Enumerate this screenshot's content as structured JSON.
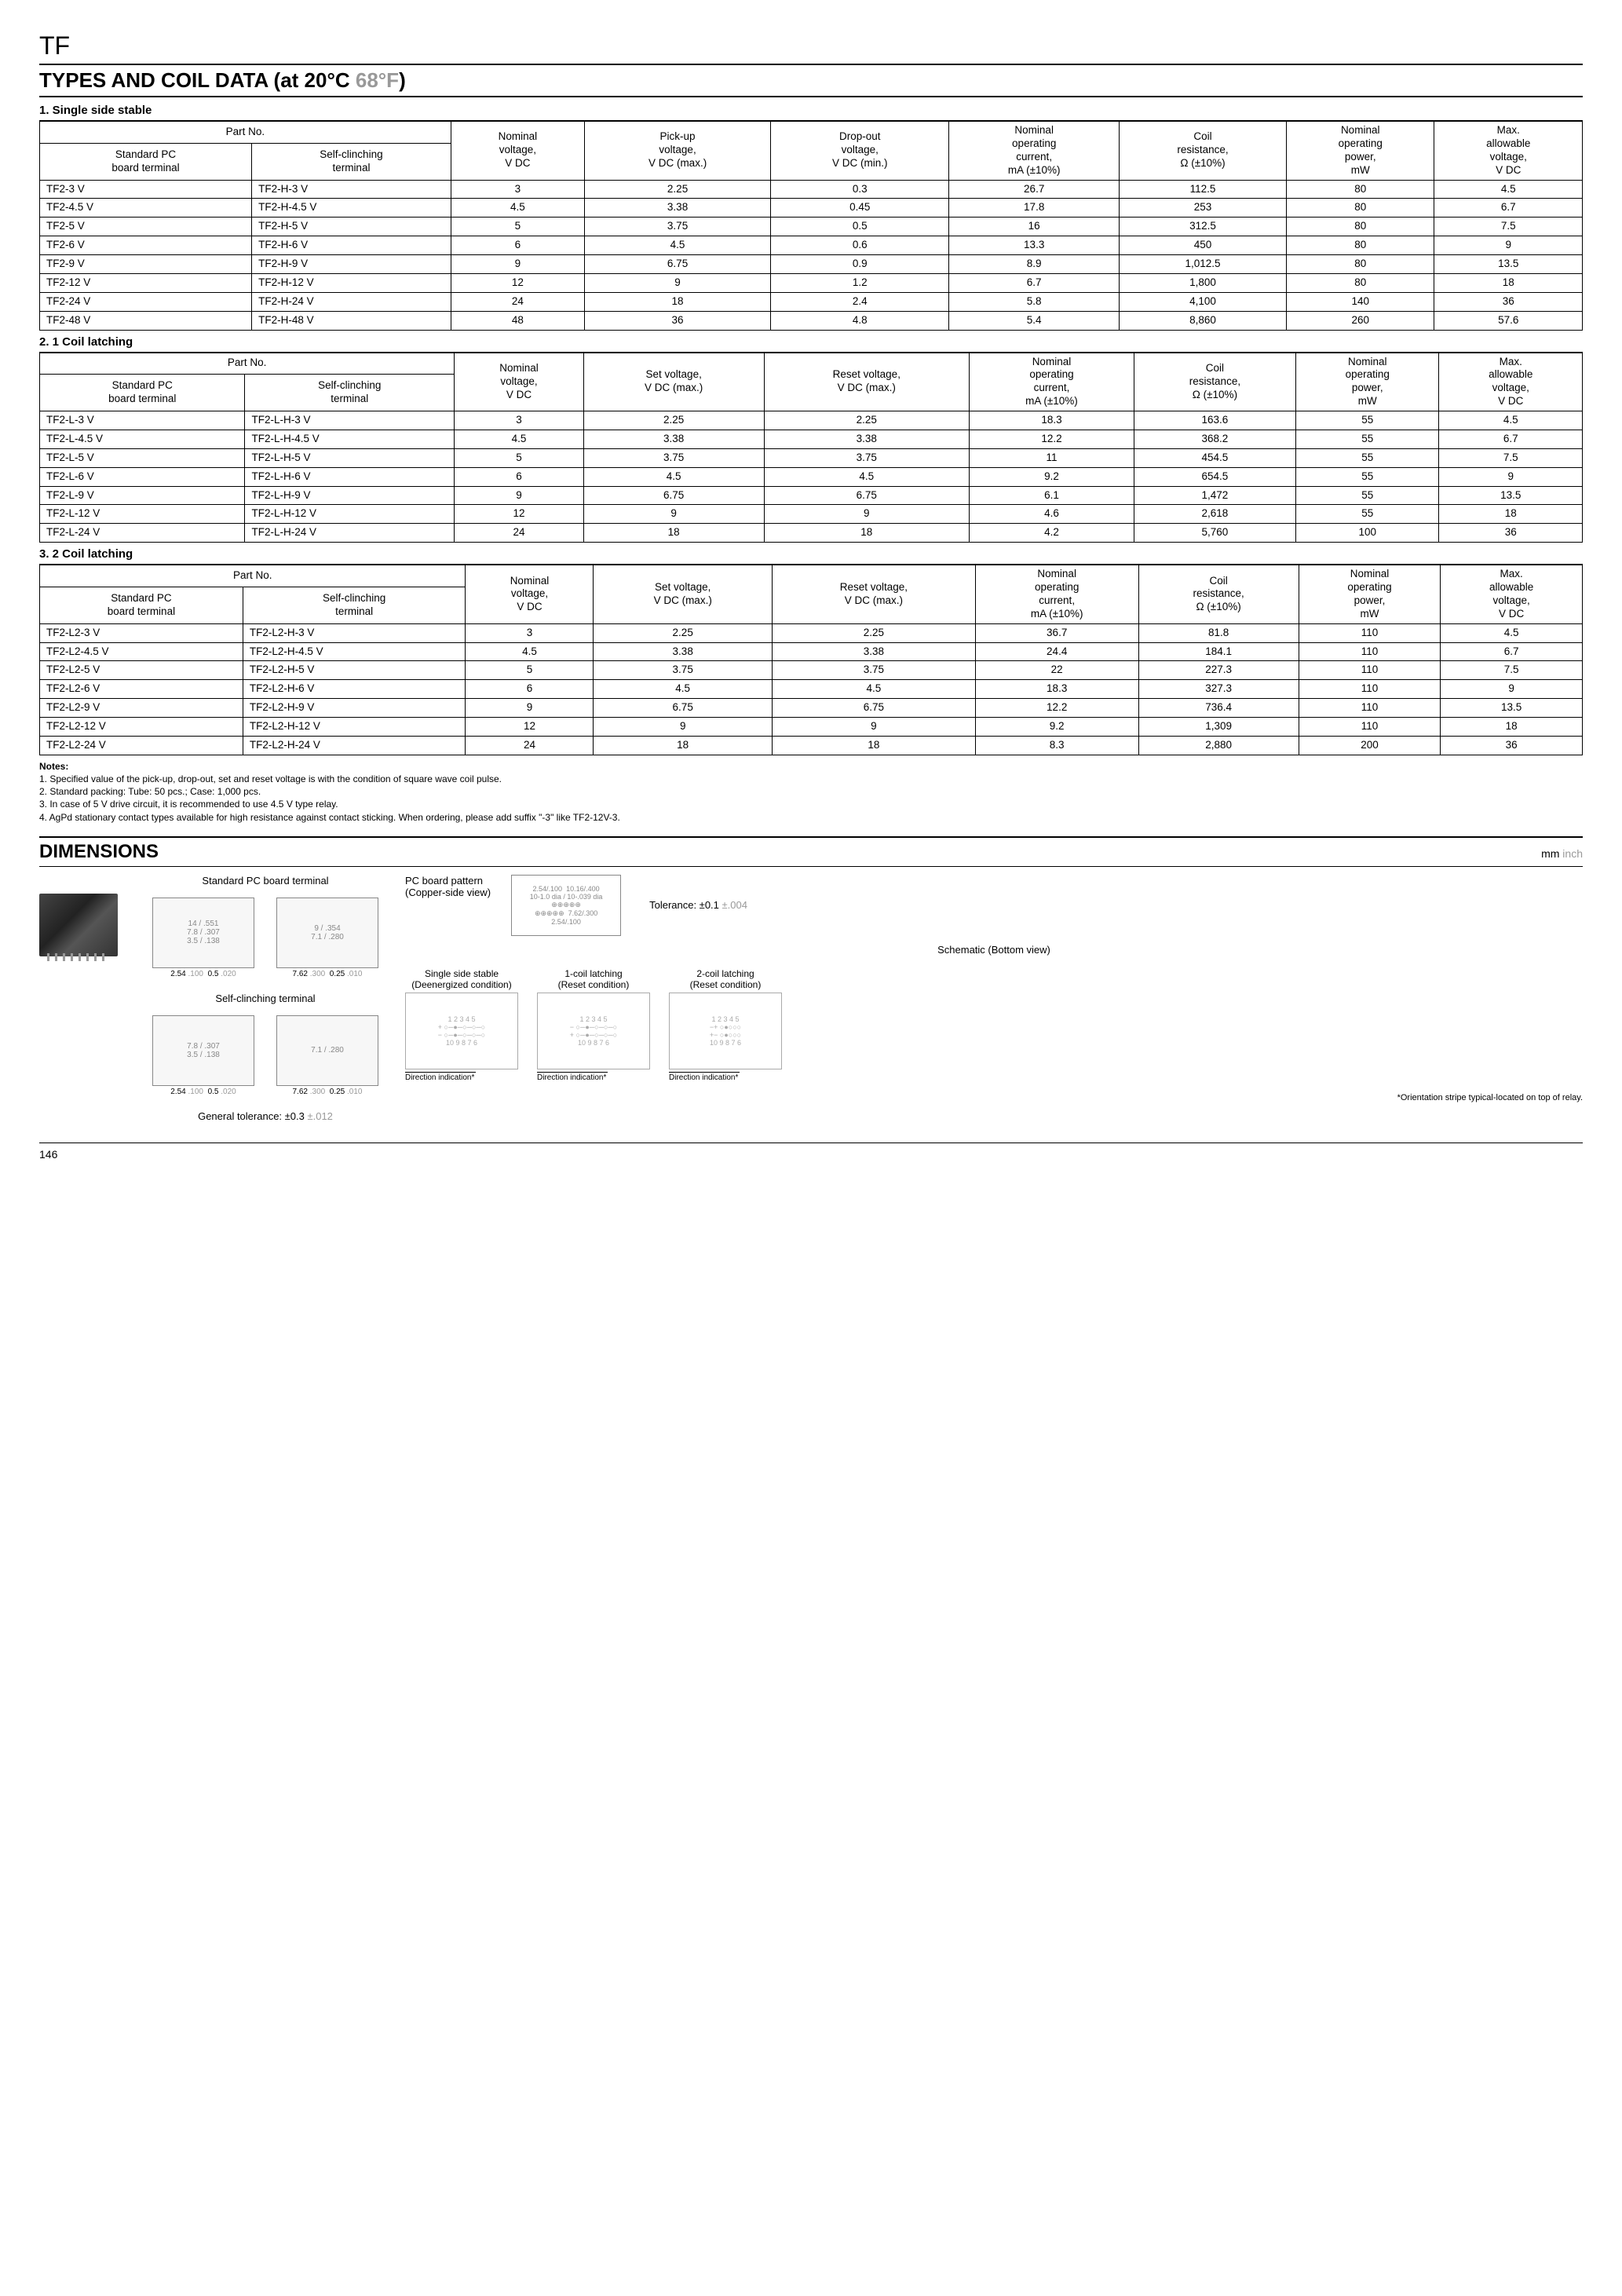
{
  "header": {
    "product_code": "TF",
    "title_main": "TYPES AND COIL DATA (at 20°C ",
    "title_gray": "68°F",
    "title_close": ")"
  },
  "table1": {
    "subtitle": "1. Single side stable",
    "part_no_header": "Part No.",
    "col_std": "Standard PC\nboard terminal",
    "col_self": "Self-clinching\nterminal",
    "col_nominal": "Nominal\nvoltage,\nV DC",
    "col_pickup": "Pick-up\nvoltage,\nV DC (max.)",
    "col_dropout": "Drop-out\nvoltage,\nV DC (min.)",
    "col_current": "Nominal\noperating\ncurrent,\nmA (±10%)",
    "col_resist": "Coil\nresistance,\nΩ (±10%)",
    "col_power": "Nominal\noperating\npower,\nmW",
    "col_max": "Max.\nallowable\nvoltage,\nV DC",
    "rows": [
      [
        "TF2-3 V",
        "TF2-H-3 V",
        "3",
        "2.25",
        "0.3",
        "26.7",
        "112.5",
        "80",
        "4.5"
      ],
      [
        "TF2-4.5 V",
        "TF2-H-4.5 V",
        "4.5",
        "3.38",
        "0.45",
        "17.8",
        "253",
        "80",
        "6.7"
      ],
      [
        "TF2-5 V",
        "TF2-H-5 V",
        "5",
        "3.75",
        "0.5",
        "16",
        "312.5",
        "80",
        "7.5"
      ],
      [
        "TF2-6 V",
        "TF2-H-6 V",
        "6",
        "4.5",
        "0.6",
        "13.3",
        "450",
        "80",
        "9"
      ],
      [
        "TF2-9 V",
        "TF2-H-9 V",
        "9",
        "6.75",
        "0.9",
        "8.9",
        "1,012.5",
        "80",
        "13.5"
      ],
      [
        "TF2-12 V",
        "TF2-H-12 V",
        "12",
        "9",
        "1.2",
        "6.7",
        "1,800",
        "80",
        "18"
      ],
      [
        "TF2-24 V",
        "TF2-H-24 V",
        "24",
        "18",
        "2.4",
        "5.8",
        "4,100",
        "140",
        "36"
      ],
      [
        "TF2-48 V",
        "TF2-H-48 V",
        "48",
        "36",
        "4.8",
        "5.4",
        "8,860",
        "260",
        "57.6"
      ]
    ]
  },
  "table2": {
    "subtitle": "2. 1 Coil latching",
    "col_set": "Set voltage,\nV DC (max.)",
    "col_reset": "Reset voltage,\nV DC (max.)",
    "rows": [
      [
        "TF2-L-3 V",
        "TF2-L-H-3 V",
        "3",
        "2.25",
        "2.25",
        "18.3",
        "163.6",
        "55",
        "4.5"
      ],
      [
        "TF2-L-4.5 V",
        "TF2-L-H-4.5 V",
        "4.5",
        "3.38",
        "3.38",
        "12.2",
        "368.2",
        "55",
        "6.7"
      ],
      [
        "TF2-L-5 V",
        "TF2-L-H-5 V",
        "5",
        "3.75",
        "3.75",
        "11",
        "454.5",
        "55",
        "7.5"
      ],
      [
        "TF2-L-6 V",
        "TF2-L-H-6 V",
        "6",
        "4.5",
        "4.5",
        "9.2",
        "654.5",
        "55",
        "9"
      ],
      [
        "TF2-L-9 V",
        "TF2-L-H-9 V",
        "9",
        "6.75",
        "6.75",
        "6.1",
        "1,472",
        "55",
        "13.5"
      ],
      [
        "TF2-L-12 V",
        "TF2-L-H-12 V",
        "12",
        "9",
        "9",
        "4.6",
        "2,618",
        "55",
        "18"
      ],
      [
        "TF2-L-24 V",
        "TF2-L-H-24 V",
        "24",
        "18",
        "18",
        "4.2",
        "5,760",
        "100",
        "36"
      ]
    ]
  },
  "table3": {
    "subtitle": "3. 2 Coil latching",
    "rows": [
      [
        "TF2-L2-3 V",
        "TF2-L2-H-3 V",
        "3",
        "2.25",
        "2.25",
        "36.7",
        "81.8",
        "110",
        "4.5"
      ],
      [
        "TF2-L2-4.5 V",
        "TF2-L2-H-4.5 V",
        "4.5",
        "3.38",
        "3.38",
        "24.4",
        "184.1",
        "110",
        "6.7"
      ],
      [
        "TF2-L2-5 V",
        "TF2-L2-H-5 V",
        "5",
        "3.75",
        "3.75",
        "22",
        "227.3",
        "110",
        "7.5"
      ],
      [
        "TF2-L2-6 V",
        "TF2-L2-H-6 V",
        "6",
        "4.5",
        "4.5",
        "18.3",
        "327.3",
        "110",
        "9"
      ],
      [
        "TF2-L2-9 V",
        "TF2-L2-H-9 V",
        "9",
        "6.75",
        "6.75",
        "12.2",
        "736.4",
        "110",
        "13.5"
      ],
      [
        "TF2-L2-12 V",
        "TF2-L2-H-12 V",
        "12",
        "9",
        "9",
        "9.2",
        "1,309",
        "110",
        "18"
      ],
      [
        "TF2-L2-24 V",
        "TF2-L2-H-24 V",
        "24",
        "18",
        "18",
        "8.3",
        "2,880",
        "200",
        "36"
      ]
    ]
  },
  "notes": {
    "title": "Notes:",
    "n1": "1. Specified value of the pick-up, drop-out, set and reset voltage is with the condition of square wave coil pulse.",
    "n2": "2. Standard packing: Tube: 50 pcs.; Case: 1,000 pcs.",
    "n3": "3. In case of 5 V drive circuit, it is recommended to use 4.5 V type relay.",
    "n4": "4. AgPd stationary contact types available for high resistance against contact sticking. When ordering, please add suffix \"-3\" like TF2-12V-3."
  },
  "dimensions": {
    "title": "DIMENSIONS",
    "unit_mm": "mm",
    "unit_inch": " inch",
    "std_label": "Standard PC board terminal",
    "self_label": "Self-clinching terminal",
    "pcb_label": "PC board pattern\n(Copper-side view)",
    "gen_tol": "General tolerance: ±0.3 ",
    "gen_tol_gray": "±.012",
    "tol": "Tolerance: ±0.1 ",
    "tol_gray": "±.004",
    "sch_header": "Schematic (Bottom view)",
    "sch1": "Single side stable\n(Deenergized condition)",
    "sch2": "1-coil latching\n(Reset condition)",
    "sch3": "2-coil latching\n(Reset condition)",
    "dir": "Direction indication*",
    "orient": "*Orientation stripe typical-located on top of relay.",
    "d_top_left": {
      "w": "14",
      "w_in": ".551",
      "h": "7.8",
      "h_in": ".307",
      "t": "3.5",
      "t_in": ".138",
      "p": "2.54",
      "p_in": ".100",
      "g": "0.5",
      "g_in": ".020"
    },
    "d_top_right": {
      "w": "9",
      "w_in": ".354",
      "h": "7.1",
      "h_in": ".280",
      "p": "7.62",
      "p_in": ".300",
      "g": "0.25",
      "g_in": ".010"
    },
    "pcb": {
      "py": "2.54",
      "py_in": ".100",
      "px": "10.16",
      "px_in": ".400",
      "d": "10-1.0 dia",
      "d_in": "10-.039 dia",
      "h": "7.62",
      "h_in": ".300",
      "b": "2.54",
      "b_in": ".100"
    }
  },
  "page": "146"
}
